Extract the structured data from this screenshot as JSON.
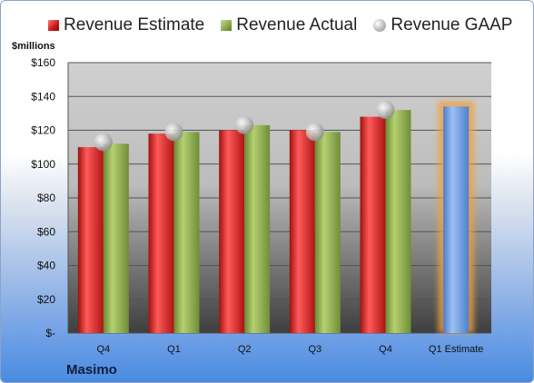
{
  "legend": {
    "estimate_label": "Revenue Estimate",
    "actual_label": "Revenue Actual",
    "gaap_label": "Revenue GAAP"
  },
  "units_label": "$millions",
  "company": "Masimo",
  "colors": {
    "estimate": "#c81818",
    "actual": "#88a84a",
    "gaap": "#b8b8b8",
    "estimate_future": "#6a9ae0",
    "highlight": "#f0a040"
  },
  "chart_data": {
    "type": "bar",
    "categories": [
      "Q4",
      "Q1",
      "Q2",
      "Q3",
      "Q4",
      "Q1 Estimate"
    ],
    "series": [
      {
        "name": "Revenue Estimate",
        "values": [
          110,
          118,
          120,
          120,
          128,
          null
        ]
      },
      {
        "name": "Revenue Actual",
        "values": [
          112,
          119,
          123,
          119,
          132,
          null
        ]
      },
      {
        "name": "Revenue GAAP",
        "marker": "circle",
        "values": [
          113,
          119,
          123,
          119,
          132,
          null
        ]
      },
      {
        "name": "Revenue Estimate",
        "values": [
          null,
          null,
          null,
          null,
          null,
          134
        ]
      }
    ],
    "ylim": [
      0,
      160
    ],
    "yticks": [
      0,
      20,
      40,
      60,
      80,
      100,
      120,
      140,
      160
    ],
    "ytick_labels": [
      "$-",
      "$20",
      "$40",
      "$60",
      "$80",
      "$100",
      "$120",
      "$140",
      "$160"
    ],
    "grid": true,
    "legend_position": "top"
  }
}
